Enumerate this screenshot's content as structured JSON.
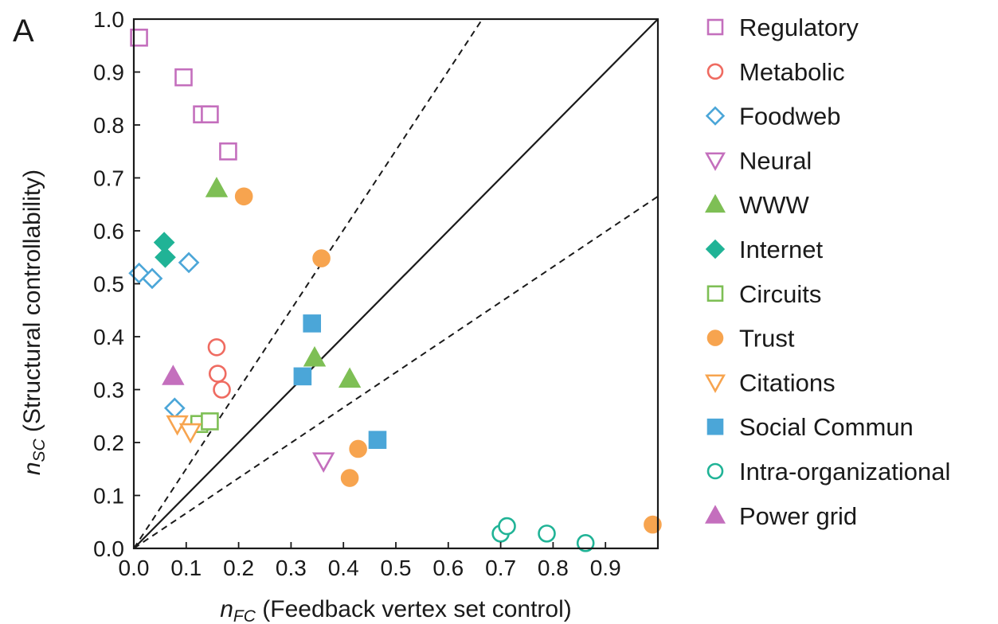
{
  "chart_data": {
    "type": "scatter",
    "panel_label": "A",
    "xlabel_var": "n",
    "xlabel_sub": "FC",
    "xlabel_text": " (Feedback vertex set control)",
    "ylabel_var": "n",
    "ylabel_sub": "SC",
    "ylabel_text": " (Structural controllability)",
    "xlim": [
      0,
      1
    ],
    "ylim": [
      0,
      1
    ],
    "xticks": [
      "0.0",
      "0.1",
      "0.2",
      "0.3",
      "0.4",
      "0.5",
      "0.6",
      "0.7",
      "0.8",
      "0.9"
    ],
    "yticks": [
      "0.0",
      "0.1",
      "0.2",
      "0.3",
      "0.4",
      "0.5",
      "0.6",
      "0.7",
      "0.8",
      "0.9",
      "1.0"
    ],
    "legend_position": "right",
    "reference_lines": [
      {
        "style": "solid",
        "x": [
          0,
          1
        ],
        "y": [
          0,
          1
        ]
      },
      {
        "style": "dashed",
        "x": [
          0,
          0.665
        ],
        "y": [
          0,
          1
        ]
      },
      {
        "style": "dashed",
        "x": [
          0,
          1
        ],
        "y": [
          0,
          0.665
        ]
      }
    ],
    "series": [
      {
        "name": "Regulatory",
        "marker": "square",
        "filled": false,
        "color": "#c46fbd",
        "points": [
          [
            0.01,
            0.965
          ],
          [
            0.095,
            0.89
          ],
          [
            0.13,
            0.82
          ],
          [
            0.145,
            0.82
          ],
          [
            0.18,
            0.75
          ]
        ]
      },
      {
        "name": "Metabolic",
        "marker": "circle",
        "filled": false,
        "color": "#ef6b61",
        "points": [
          [
            0.158,
            0.38
          ],
          [
            0.16,
            0.33
          ],
          [
            0.168,
            0.3
          ]
        ]
      },
      {
        "name": "Foodweb",
        "marker": "diamond",
        "filled": false,
        "color": "#4ba6d8",
        "points": [
          [
            0.01,
            0.52
          ],
          [
            0.035,
            0.51
          ],
          [
            0.105,
            0.54
          ],
          [
            0.078,
            0.265
          ]
        ]
      },
      {
        "name": "Neural",
        "marker": "triangle-down",
        "filled": false,
        "color": "#c46fbd",
        "points": [
          [
            0.362,
            0.165
          ]
        ]
      },
      {
        "name": "WWW",
        "marker": "triangle-up",
        "filled": true,
        "color": "#7ebf55",
        "points": [
          [
            0.158,
            0.68
          ],
          [
            0.345,
            0.36
          ],
          [
            0.412,
            0.32
          ]
        ]
      },
      {
        "name": "Internet",
        "marker": "diamond",
        "filled": true,
        "color": "#20b396",
        "points": [
          [
            0.058,
            0.578
          ],
          [
            0.06,
            0.55
          ]
        ]
      },
      {
        "name": "Circuits",
        "marker": "square",
        "filled": false,
        "color": "#7ebf55",
        "points": [
          [
            0.125,
            0.235
          ],
          [
            0.145,
            0.24
          ]
        ]
      },
      {
        "name": "Trust",
        "marker": "circle",
        "filled": true,
        "color": "#f7a44f",
        "points": [
          [
            0.21,
            0.665
          ],
          [
            0.358,
            0.548
          ],
          [
            0.428,
            0.188
          ],
          [
            0.412,
            0.133
          ],
          [
            0.99,
            0.045
          ]
        ]
      },
      {
        "name": "Citations",
        "marker": "triangle-down",
        "filled": false,
        "color": "#f7a44f",
        "points": [
          [
            0.083,
            0.235
          ],
          [
            0.108,
            0.22
          ]
        ]
      },
      {
        "name": "Social Commun",
        "marker": "square",
        "filled": true,
        "color": "#4ba6d8",
        "points": [
          [
            0.34,
            0.425
          ],
          [
            0.322,
            0.325
          ],
          [
            0.465,
            0.205
          ]
        ]
      },
      {
        "name": "Intra-organizational",
        "marker": "circle",
        "filled": false,
        "color": "#20b396",
        "points": [
          [
            0.7,
            0.028
          ],
          [
            0.712,
            0.042
          ],
          [
            0.788,
            0.028
          ],
          [
            0.862,
            0.01
          ]
        ]
      },
      {
        "name": "Power grid",
        "marker": "triangle-up",
        "filled": true,
        "color": "#c46fbd",
        "points": [
          [
            0.075,
            0.325
          ]
        ]
      }
    ]
  }
}
